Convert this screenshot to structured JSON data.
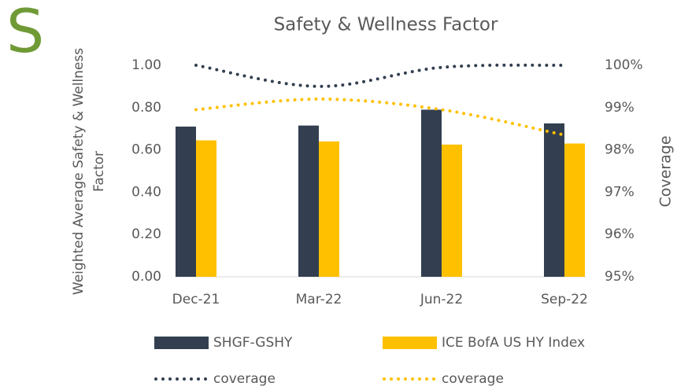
{
  "badge": "S",
  "chart_data": {
    "type": "bar_line",
    "title": "Safety & Wellness Factor",
    "y_label": [
      "Weighted Average  Safety & Wellness",
      "Factor"
    ],
    "y2_label": "Coverage",
    "categories": [
      "Dec-21",
      "Mar-22",
      "Jun-22",
      "Sep-22"
    ],
    "series": [
      {
        "name": "SHGF-GSHY",
        "color": "#333f50",
        "type": "bar",
        "values": [
          0.71,
          0.715,
          0.79,
          0.725
        ]
      },
      {
        "name": "ICE BofA US HY Index",
        "color": "#ffc000",
        "type": "bar",
        "values": [
          0.645,
          0.64,
          0.625,
          0.63
        ]
      },
      {
        "name": "coverage",
        "color": "#333f50",
        "type": "line",
        "axis": "y2",
        "values": [
          100,
          99.5,
          99.95,
          100
        ]
      },
      {
        "name": "coverage",
        "color": "#ffc000",
        "type": "line",
        "axis": "y2",
        "values": [
          98.95,
          99.2,
          98.95,
          98.35
        ]
      }
    ],
    "ylim": [
      0,
      1
    ],
    "yticks": [
      {
        "value": 0,
        "label": "0.00"
      },
      {
        "value": 0.2,
        "label": "0.20"
      },
      {
        "value": 0.4,
        "label": "0.40"
      },
      {
        "value": 0.6,
        "label": "0.60"
      },
      {
        "value": 0.8,
        "label": "0.80"
      },
      {
        "value": 1,
        "label": "1.00"
      }
    ],
    "y2lim": [
      95,
      100
    ],
    "y2ticks": [
      {
        "value": 95,
        "label": "95%"
      },
      {
        "value": 96,
        "label": "96%"
      },
      {
        "value": 97,
        "label": "97%"
      },
      {
        "value": 98,
        "label": "98%"
      },
      {
        "value": 99,
        "label": "99%"
      },
      {
        "value": 100,
        "label": "100%"
      }
    ],
    "legend": "bottom"
  }
}
